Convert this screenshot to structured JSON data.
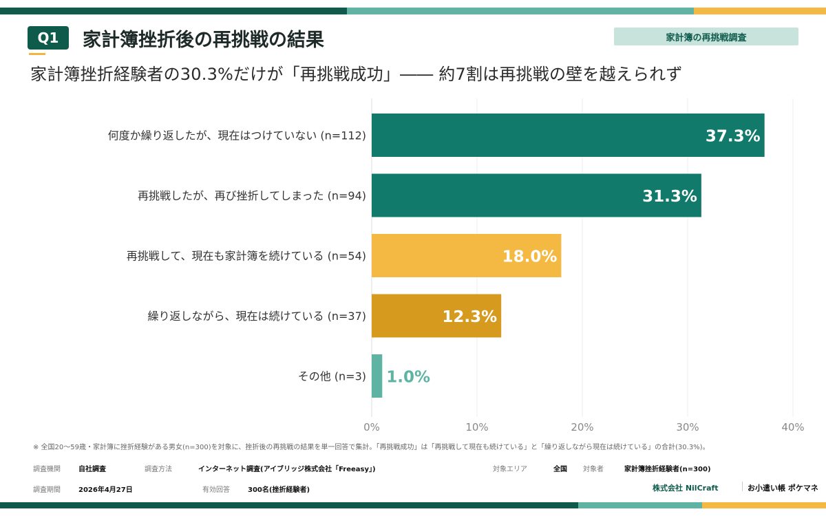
{
  "header": {
    "badge": "Q1",
    "title": "家計簿挫折後の再挑戦の結果",
    "tag": "家計簿の再挑戦調査",
    "subtitle": "家計簿挫折経験者の30.3%だけが「再挑戦成功」―― 約7割は再挑戦の壁を越えられず"
  },
  "chart_data": {
    "type": "bar",
    "orientation": "horizontal",
    "categories": [
      "何度か繰り返したが、現在はつけていない (n=112)",
      "再挑戦したが、再び挫折してしまった (n=94)",
      "再挑戦して、現在も家計簿を続けている (n=54)",
      "繰り返しながら、現在は続けている (n=37)",
      "その他 (n=3)"
    ],
    "values": [
      37.3,
      31.3,
      18.0,
      12.3,
      1.0
    ],
    "value_labels": [
      "37.3%",
      "31.3%",
      "18.0%",
      "12.3%",
      "1.0%"
    ],
    "colors": [
      "#127a6b",
      "#127a6b",
      "#f4b942",
      "#d69a1f",
      "#5fb3a3"
    ],
    "xlim": [
      0,
      40
    ],
    "xticks": [
      "0%",
      "10%",
      "20%",
      "30%",
      "40%"
    ],
    "grid": true
  },
  "footer": {
    "note": "※ 全国20〜59歳・家計簿に挫折経験がある男女(n=300)を対象に、挫折後の再挑戦の結果を単一回答で集計。「再挑戦成功」は「再挑戦して現在も続けている」と「繰り返しながら現在は続けている」の合計(30.3%)。",
    "org_label": "調査機関",
    "org_value": "自社調査",
    "method_label": "調査方法",
    "method_value": "インターネット調査(アイブリッジ株式会社「Freeasy」)",
    "area_label": "対象エリア",
    "area_value": "全国",
    "target_label": "対象者",
    "target_value": "家計簿挫折経験者(n=300)",
    "period_label": "調査期間",
    "period_value": "2026年4月27日",
    "responses_label": "有効回答",
    "responses_value": "300名(挫折経験者)",
    "brand1": "株式会社 NilCraft",
    "brand2": "お小遣い帳 ポケマネ"
  },
  "colors": {
    "dark_green": "#0e5b4c",
    "teal": "#127a6b",
    "light_teal": "#5fb3a3",
    "yellow": "#f4b942",
    "orange": "#d69a1f"
  }
}
